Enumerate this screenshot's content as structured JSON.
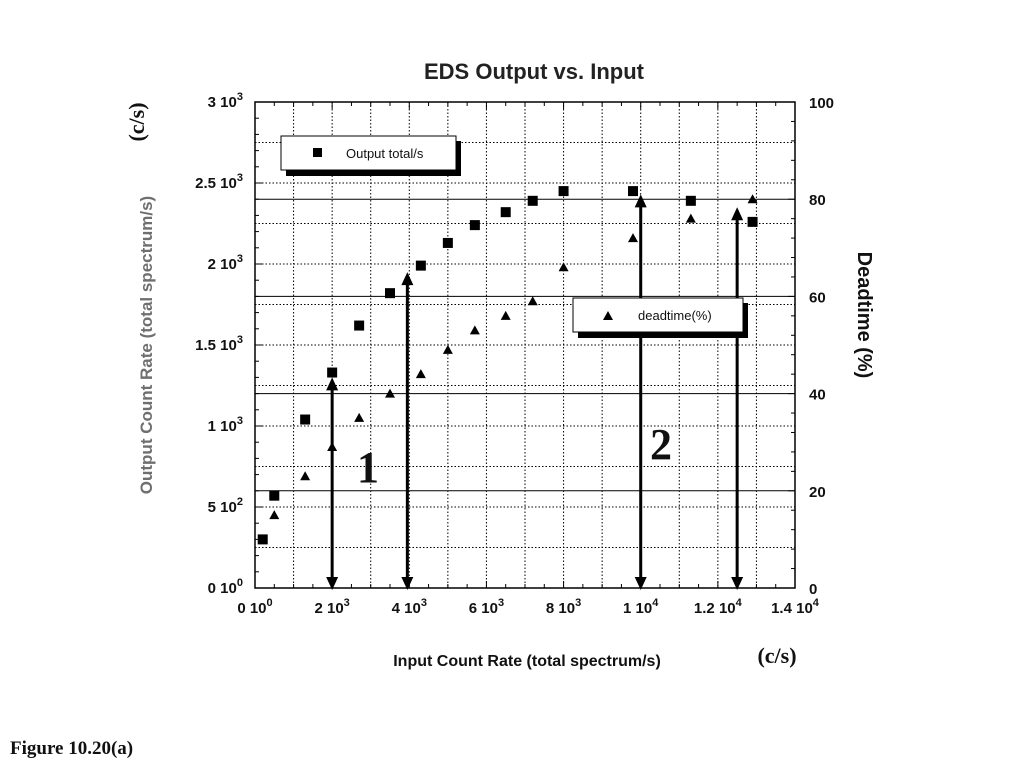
{
  "figure_label": "Figure 10.20(a)",
  "chart_data": {
    "type": "scatter",
    "title": "EDS Output vs. Input",
    "xlabel": "Input Count Rate (total spectrum/s)",
    "x_unit_note": "(c/s)",
    "ylabel": "Output Count Rate (total spectrum/s)",
    "y_unit_note": "(c/s)",
    "y2label": "Deadtime (%)",
    "xlim": [
      0,
      14000
    ],
    "ylim": [
      0,
      3000
    ],
    "y2lim": [
      0,
      100
    ],
    "x_ticks": [
      0,
      2000,
      4000,
      6000,
      8000,
      10000,
      12000,
      14000
    ],
    "x_tick_labels": [
      {
        "base": "0 10",
        "exp": "0"
      },
      {
        "base": "2 10",
        "exp": "3"
      },
      {
        "base": "4 10",
        "exp": "3"
      },
      {
        "base": "6 10",
        "exp": "3"
      },
      {
        "base": "8 10",
        "exp": "3"
      },
      {
        "base": "1 10",
        "exp": "4"
      },
      {
        "base": "1.2 10",
        "exp": "4"
      },
      {
        "base": "1.4 10",
        "exp": "4"
      }
    ],
    "y_ticks": [
      0,
      500,
      1000,
      1500,
      2000,
      2500,
      3000
    ],
    "y_tick_labels": [
      {
        "base": "0 10",
        "exp": "0"
      },
      {
        "base": "5 10",
        "exp": "2"
      },
      {
        "base": "1 10",
        "exp": "3"
      },
      {
        "base": "1.5 10",
        "exp": "3"
      },
      {
        "base": "2 10",
        "exp": "3"
      },
      {
        "base": "2.5 10",
        "exp": "3"
      },
      {
        "base": "3 10",
        "exp": "3"
      }
    ],
    "y2_ticks": [
      0,
      20,
      40,
      60,
      80,
      100
    ],
    "y2_tick_labels": [
      "0",
      "20",
      "40",
      "60",
      "80",
      "100"
    ],
    "grid": true,
    "series": [
      {
        "name": "Output total/s",
        "axis": "left",
        "marker": "square",
        "x": [
          200,
          500,
          1300,
          2000,
          2700,
          3500,
          4300,
          5000,
          5700,
          6500,
          7200,
          8000,
          9800,
          11300,
          12900
        ],
        "y": [
          300,
          570,
          1040,
          1330,
          1620,
          1820,
          1990,
          2130,
          2240,
          2320,
          2390,
          2450,
          2450,
          2390,
          2260
        ]
      },
      {
        "name": "deadtime(%)",
        "axis": "right",
        "marker": "triangle",
        "x": [
          200,
          500,
          1300,
          2000,
          2700,
          3500,
          4300,
          5000,
          5700,
          6500,
          7200,
          8000,
          9800,
          11300,
          12900
        ],
        "y": [
          10,
          15,
          23,
          29,
          35,
          40,
          44,
          49,
          53,
          56,
          59,
          66,
          72,
          76,
          80
        ]
      }
    ],
    "legend_output": {
      "label": "Output total/s",
      "position": "top-left"
    },
    "legend_deadtime": {
      "label": "deadtime(%)",
      "position": "center-right"
    },
    "region_labels": [
      "1",
      "2"
    ],
    "annotations": [
      {
        "type": "double-arrow",
        "x": 2000,
        "y_from": 0,
        "y_to": 1300
      },
      {
        "type": "double-arrow",
        "x": 3950,
        "y_from": 0,
        "y_to": 1950
      },
      {
        "type": "double-arrow",
        "x": 10000,
        "y_from": 0,
        "y_to": 2430
      },
      {
        "type": "double-arrow",
        "x": 12500,
        "y_from": 0,
        "y_to": 2350
      }
    ]
  }
}
